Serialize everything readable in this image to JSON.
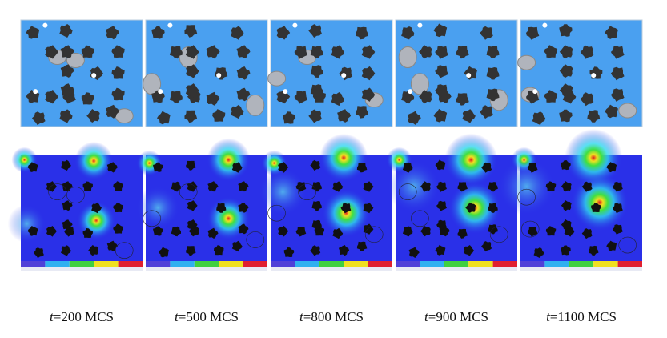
{
  "captions": [
    {
      "variable": "t",
      "text": "=200 MCS"
    },
    {
      "variable": "t",
      "text": "=500 MCS"
    },
    {
      "variable": "t",
      "text": "=800 MCS"
    },
    {
      "variable": "t",
      "text": "=900 MCS"
    },
    {
      "variable": "t",
      "text": "=1100 MCS"
    }
  ]
}
